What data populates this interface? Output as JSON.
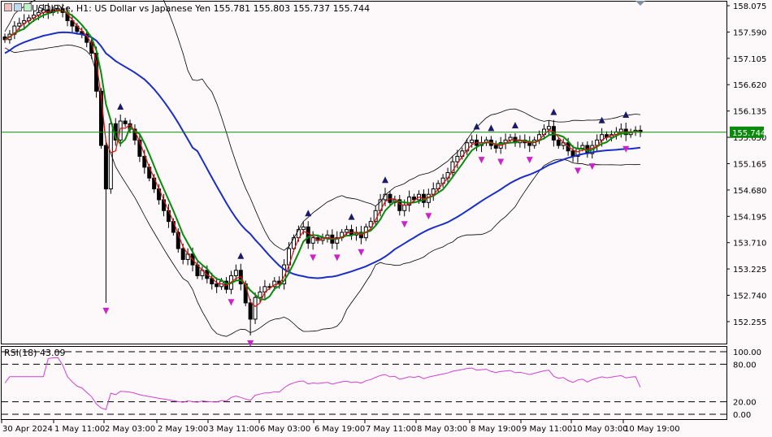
{
  "header": {
    "symbol_text": "USDJPY.e, H1:  US Dollar vs Japanese Yen  155.781 155.803 155.737 155.744"
  },
  "indicator": {
    "label": "RSI(18) 43.09"
  },
  "colors": {
    "background": "#fdf9fb",
    "bull_candle": "#000000",
    "bear_candle": "#000000",
    "ma_fast": "#e01010",
    "ma_slow": "#0a8a0a",
    "ma_long": "#1a2ec8",
    "bollinger": "#000000",
    "price_line": "#0a8a0a",
    "rsi_line": "#d040d0",
    "fractal_up": "#1a1a6a",
    "fractal_down": "#cc22cc"
  },
  "chart_data": {
    "type": "candlestick",
    "current_price": "155.744",
    "y_ticks": [
      "158.075",
      "157.590",
      "157.105",
      "156.620",
      "156.135",
      "155.650",
      "155.165",
      "154.680",
      "154.195",
      "153.710",
      "153.225",
      "152.740",
      "152.255"
    ],
    "ylim": [
      151.85,
      158.15
    ],
    "x_ticks": [
      "30 Apr 2024",
      "1 May 11:00",
      "2 May 03:00",
      "2 May 19:00",
      "3 May 11:00",
      "6 May 03:00",
      "6 May 19:00",
      "7 May 11:00",
      "8 May 03:00",
      "8 May 19:00",
      "9 May 11:00",
      "10 May 03:00",
      "10 May 19:00"
    ],
    "rsi": {
      "levels": [
        100,
        80,
        20,
        0
      ],
      "level_labels": [
        "100.00",
        "80.00",
        "20.00",
        "0.00"
      ],
      "current": 43.09
    },
    "close": [
      157.45,
      157.55,
      157.7,
      157.75,
      157.8,
      157.85,
      157.9,
      157.95,
      158.0,
      157.95,
      158.0,
      158.02,
      157.95,
      157.8,
      157.7,
      157.6,
      157.55,
      157.4,
      157.2,
      156.5,
      155.5,
      154.7,
      155.9,
      155.6,
      155.95,
      155.9,
      155.8,
      155.6,
      155.3,
      155.1,
      154.9,
      154.7,
      154.5,
      154.3,
      154.1,
      153.9,
      153.6,
      153.4,
      153.5,
      153.3,
      153.1,
      153.2,
      153.05,
      152.95,
      152.9,
      153.0,
      152.85,
      153.1,
      153.2,
      152.95,
      152.6,
      152.3,
      152.7,
      152.8,
      152.9,
      152.9,
      153.0,
      152.95,
      153.3,
      153.6,
      153.8,
      153.95,
      154.0,
      153.7,
      153.8,
      153.75,
      153.8,
      153.85,
      153.7,
      153.8,
      153.9,
      153.95,
      153.85,
      153.9,
      153.8,
      154.0,
      154.1,
      154.3,
      154.5,
      154.6,
      154.45,
      154.5,
      154.3,
      154.4,
      154.55,
      154.5,
      154.6,
      154.45,
      154.6,
      154.7,
      154.8,
      154.9,
      155.0,
      155.2,
      155.3,
      155.4,
      155.55,
      155.6,
      155.5,
      155.55,
      155.6,
      155.5,
      155.45,
      155.55,
      155.6,
      155.65,
      155.55,
      155.6,
      155.55,
      155.5,
      155.6,
      155.7,
      155.8,
      155.85,
      155.6,
      155.5,
      155.55,
      155.4,
      155.3,
      155.45,
      155.5,
      155.35,
      155.5,
      155.6,
      155.7,
      155.65,
      155.7,
      155.75,
      155.8,
      155.7,
      155.75,
      155.78,
      155.744
    ],
    "overlays": [
      "MA fast",
      "MA slow",
      "MA long",
      "Bollinger Bands",
      "Fractals"
    ]
  }
}
